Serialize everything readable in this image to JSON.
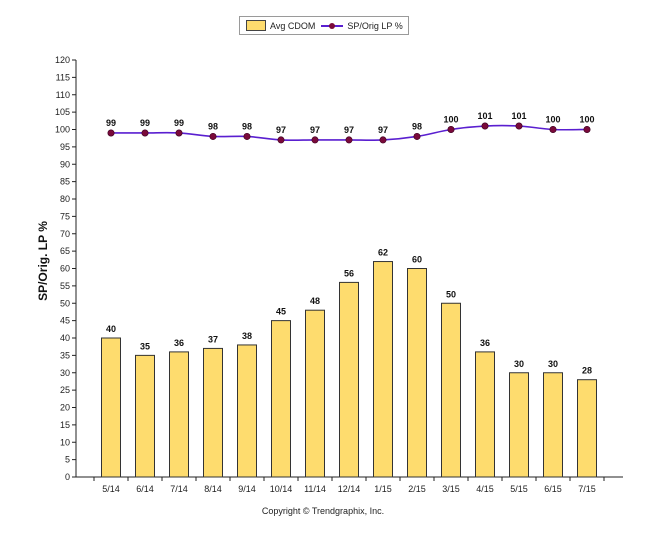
{
  "legend": {
    "bar_label": "Avg CDOM",
    "line_label": "SP/Orig LP %"
  },
  "footer": {
    "copyright": "Copyright © Trendgraphix, Inc."
  },
  "colors": {
    "bar_fill": "#fedc6e",
    "bar_stroke": "#333333",
    "line": "#5a1fd0",
    "marker": "#7a0a3a"
  },
  "chart_data": {
    "type": "bar",
    "title": "",
    "xlabel": "",
    "ylabel": "SP/Orig. LP %",
    "ylim": [
      0,
      120
    ],
    "ytick_step": 5,
    "grid": false,
    "legend_position": "top-center",
    "categories": [
      "5/14",
      "6/14",
      "7/14",
      "8/14",
      "9/14",
      "10/14",
      "11/14",
      "12/14",
      "1/15",
      "2/15",
      "3/15",
      "4/15",
      "5/15",
      "6/15",
      "7/15"
    ],
    "series": [
      {
        "name": "Avg CDOM",
        "kind": "bar",
        "values": [
          40,
          35,
          36,
          37,
          38,
          45,
          48,
          56,
          62,
          60,
          50,
          36,
          30,
          30,
          28
        ]
      },
      {
        "name": "SP/Orig LP %",
        "kind": "line",
        "values": [
          99,
          99,
          99,
          98,
          98,
          97,
          97,
          97,
          97,
          98,
          100,
          101,
          101,
          100,
          100
        ]
      }
    ]
  }
}
